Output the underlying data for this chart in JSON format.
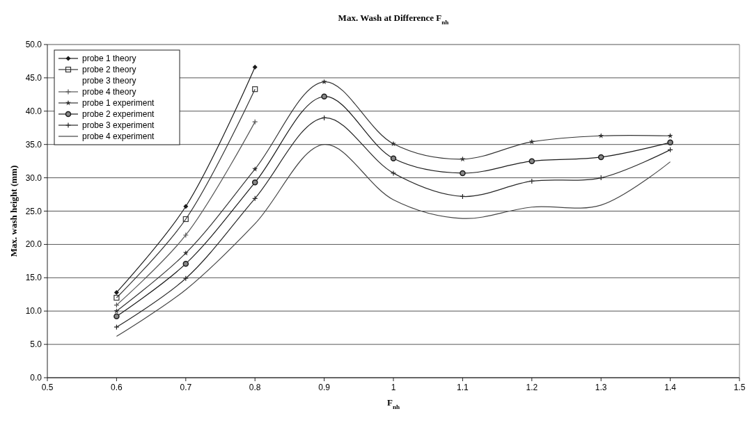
{
  "chart_data": {
    "type": "line",
    "title": "Max. Wash at Difference F$_{nh}$",
    "xlabel": "F$_{nh}$",
    "ylabel": "Max. wash height (mm)",
    "x": [
      0.6,
      0.7,
      0.8,
      0.9,
      1.0,
      1.1,
      1.2,
      1.3,
      1.4
    ],
    "xlim": [
      0.5,
      1.5
    ],
    "xticks": [
      0.5,
      0.6,
      0.7,
      0.8,
      0.9,
      1,
      1.1,
      1.2,
      1.3,
      1.4,
      1.5
    ],
    "ylim": [
      0,
      50
    ],
    "yticks": [
      {
        "value": 0,
        "label": "0.0"
      },
      {
        "value": 5,
        "label": "5.0"
      },
      {
        "value": 10,
        "label": "10.0"
      },
      {
        "value": 15,
        "label": "15.0"
      },
      {
        "value": 20,
        "label": "20.0"
      },
      {
        "value": 25,
        "label": "25.0"
      },
      {
        "value": 30,
        "label": "30.0"
      },
      {
        "value": 35,
        "label": "35.0"
      },
      {
        "value": 40,
        "label": "40.0"
      },
      {
        "value": 45,
        "label": "45.0"
      },
      {
        "value": 50,
        "label": "50.0"
      }
    ],
    "grid": "y",
    "legend": "top left",
    "series": [
      {
        "name": "probe 1 theory",
        "color": "#1a1a1a",
        "marker": "diamond",
        "values": [
          12.8,
          25.7,
          46.6,
          null,
          null,
          null,
          null,
          null,
          null
        ]
      },
      {
        "name": "probe 2 theory",
        "color": "#333333",
        "marker": "square",
        "values": [
          12.0,
          23.8,
          43.3,
          null,
          null,
          null,
          null,
          null,
          null
        ]
      },
      {
        "name": "probe 3 theory",
        "marker": "none",
        "values": [
          null,
          null,
          null,
          null,
          null,
          null,
          null,
          null,
          null
        ]
      },
      {
        "name": "probe 4 theory",
        "color": "#555555",
        "marker": "cross",
        "values": [
          10.9,
          21.4,
          38.4,
          null,
          null,
          null,
          null,
          null,
          null
        ]
      },
      {
        "name": "probe 1 experiment",
        "color": "#333333",
        "marker": "star",
        "values": [
          10.0,
          18.7,
          31.3,
          44.4,
          35.1,
          32.8,
          35.4,
          36.3,
          36.3
        ]
      },
      {
        "name": "probe 2 experiment",
        "color": "#1a1a1a",
        "marker": "circle",
        "values": [
          9.2,
          17.1,
          29.3,
          42.2,
          32.9,
          30.7,
          32.5,
          33.1,
          35.3
        ]
      },
      {
        "name": "probe 3 experiment",
        "color": "#262626",
        "marker": "cross",
        "values": [
          7.6,
          14.9,
          26.9,
          39.0,
          30.7,
          27.2,
          29.5,
          30.0,
          34.2
        ]
      },
      {
        "name": "probe 4 experiment",
        "color": "#444444",
        "marker": "none",
        "values": [
          6.2,
          13.2,
          23.1,
          35.0,
          26.7,
          23.9,
          25.6,
          25.9,
          32.4
        ]
      }
    ]
  }
}
